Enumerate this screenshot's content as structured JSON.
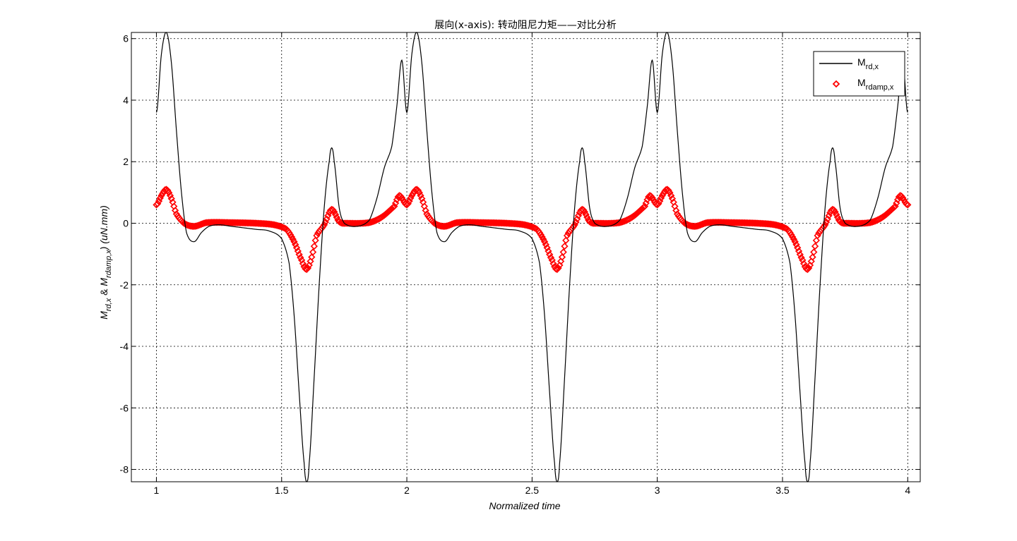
{
  "chart_data": {
    "type": "line",
    "title": "展向(x-axis): 转动阻尼力矩——对比分析",
    "xlabel": "Normalized time",
    "ylabel": {
      "m1": "M",
      "s1": "rd,x",
      "amp": " & ",
      "m2": "M",
      "s2": "rdamp,x",
      "units": ")  (uN.mm)"
    },
    "xlim": [
      0.9,
      4.05
    ],
    "ylim": [
      -8.4,
      6.2
    ],
    "x_ticks": [
      1,
      1.5,
      2,
      2.5,
      3,
      3.5,
      4
    ],
    "x_tick_labels": [
      "1",
      "1.5",
      "2",
      "2.5",
      "3",
      "3.5",
      "4"
    ],
    "y_ticks": [
      -8,
      -6,
      -4,
      -2,
      0,
      2,
      4,
      6
    ],
    "y_tick_labels": [
      "-8",
      "-6",
      "-4",
      "-2",
      "0",
      "2",
      "4",
      "6"
    ],
    "grid": true,
    "legend_position": "top-right",
    "period": 1,
    "series": [
      {
        "name": "M_rd,x",
        "label_main": "M",
        "label_sub": "rd,x",
        "color": "#000000",
        "style": "line",
        "cycle": [
          [
            0.0,
            3.6
          ],
          [
            0.02,
            5.5
          ],
          [
            0.04,
            6.2
          ],
          [
            0.06,
            5.2
          ],
          [
            0.08,
            3.0
          ],
          [
            0.1,
            1.0
          ],
          [
            0.12,
            -0.3
          ],
          [
            0.15,
            -0.6
          ],
          [
            0.18,
            -0.3
          ],
          [
            0.21,
            -0.1
          ],
          [
            0.25,
            -0.05
          ],
          [
            0.3,
            -0.1
          ],
          [
            0.35,
            -0.15
          ],
          [
            0.4,
            -0.2
          ],
          [
            0.45,
            -0.25
          ],
          [
            0.5,
            -0.5
          ],
          [
            0.53,
            -1.3
          ],
          [
            0.55,
            -3.0
          ],
          [
            0.57,
            -5.5
          ],
          [
            0.59,
            -7.8
          ],
          [
            0.6,
            -8.4
          ],
          [
            0.61,
            -7.8
          ],
          [
            0.63,
            -5.0
          ],
          [
            0.65,
            -2.0
          ],
          [
            0.67,
            0.5
          ],
          [
            0.69,
            2.0
          ],
          [
            0.7,
            2.45
          ],
          [
            0.71,
            2.0
          ],
          [
            0.73,
            0.5
          ],
          [
            0.75,
            0.0
          ],
          [
            0.8,
            -0.1
          ],
          [
            0.85,
            0.1
          ],
          [
            0.88,
            0.8
          ],
          [
            0.91,
            1.8
          ],
          [
            0.94,
            2.5
          ],
          [
            0.96,
            3.8
          ],
          [
            0.98,
            5.3
          ],
          [
            1.0,
            3.6
          ]
        ]
      },
      {
        "name": "M_rdamp,x",
        "label_main": "M",
        "label_sub": "rdamp,x",
        "color": "#ff0000",
        "style": "marker",
        "cycle": [
          [
            0.0,
            0.6
          ],
          [
            0.02,
            0.9
          ],
          [
            0.04,
            1.1
          ],
          [
            0.06,
            0.8
          ],
          [
            0.08,
            0.3
          ],
          [
            0.11,
            0.0
          ],
          [
            0.15,
            -0.1
          ],
          [
            0.2,
            0.02
          ],
          [
            0.3,
            0.02
          ],
          [
            0.4,
            0.0
          ],
          [
            0.47,
            -0.05
          ],
          [
            0.52,
            -0.2
          ],
          [
            0.55,
            -0.6
          ],
          [
            0.58,
            -1.2
          ],
          [
            0.6,
            -1.5
          ],
          [
            0.62,
            -1.1
          ],
          [
            0.64,
            -0.4
          ],
          [
            0.67,
            -0.05
          ],
          [
            0.7,
            0.45
          ],
          [
            0.73,
            0.05
          ],
          [
            0.76,
            0.0
          ],
          [
            0.85,
            0.02
          ],
          [
            0.9,
            0.2
          ],
          [
            0.95,
            0.55
          ],
          [
            0.97,
            0.9
          ],
          [
            1.0,
            0.6
          ]
        ]
      }
    ]
  }
}
